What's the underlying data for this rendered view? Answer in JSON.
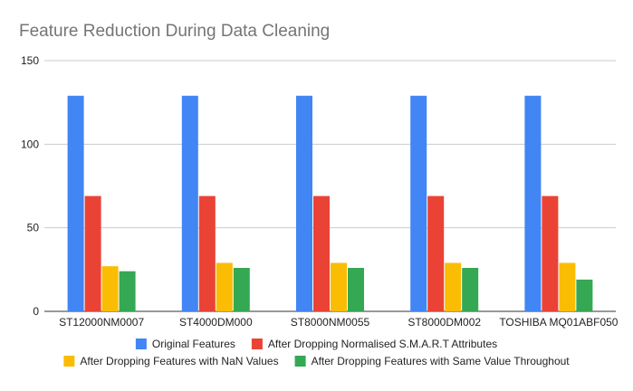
{
  "chart_data": {
    "type": "bar",
    "title": "Feature Reduction During Data Cleaning",
    "xlabel": "",
    "ylabel": "",
    "categories": [
      "ST12000NM0007",
      "ST4000DM000",
      "ST8000NM0055",
      "ST8000DM002",
      "TOSHIBA MQ01ABF050"
    ],
    "series": [
      {
        "name": "Original Features",
        "values": [
          129,
          129,
          129,
          129,
          129
        ],
        "color": "#4285f4"
      },
      {
        "name": "After Dropping Normalised S.M.A.R.T Attributes",
        "values": [
          69,
          69,
          69,
          69,
          69
        ],
        "color": "#ea4335"
      },
      {
        "name": "After Dropping Features with NaN Values",
        "values": [
          27,
          29,
          29,
          29,
          29
        ],
        "color": "#fbbc04"
      },
      {
        "name": "After Dropping Features with Same Value Throughout",
        "values": [
          24,
          26,
          26,
          26,
          19
        ],
        "color": "#34a853"
      }
    ],
    "ylim": [
      0,
      150
    ],
    "yticks": [
      0,
      50,
      100,
      150
    ],
    "grid": true,
    "legend_position": "bottom"
  }
}
